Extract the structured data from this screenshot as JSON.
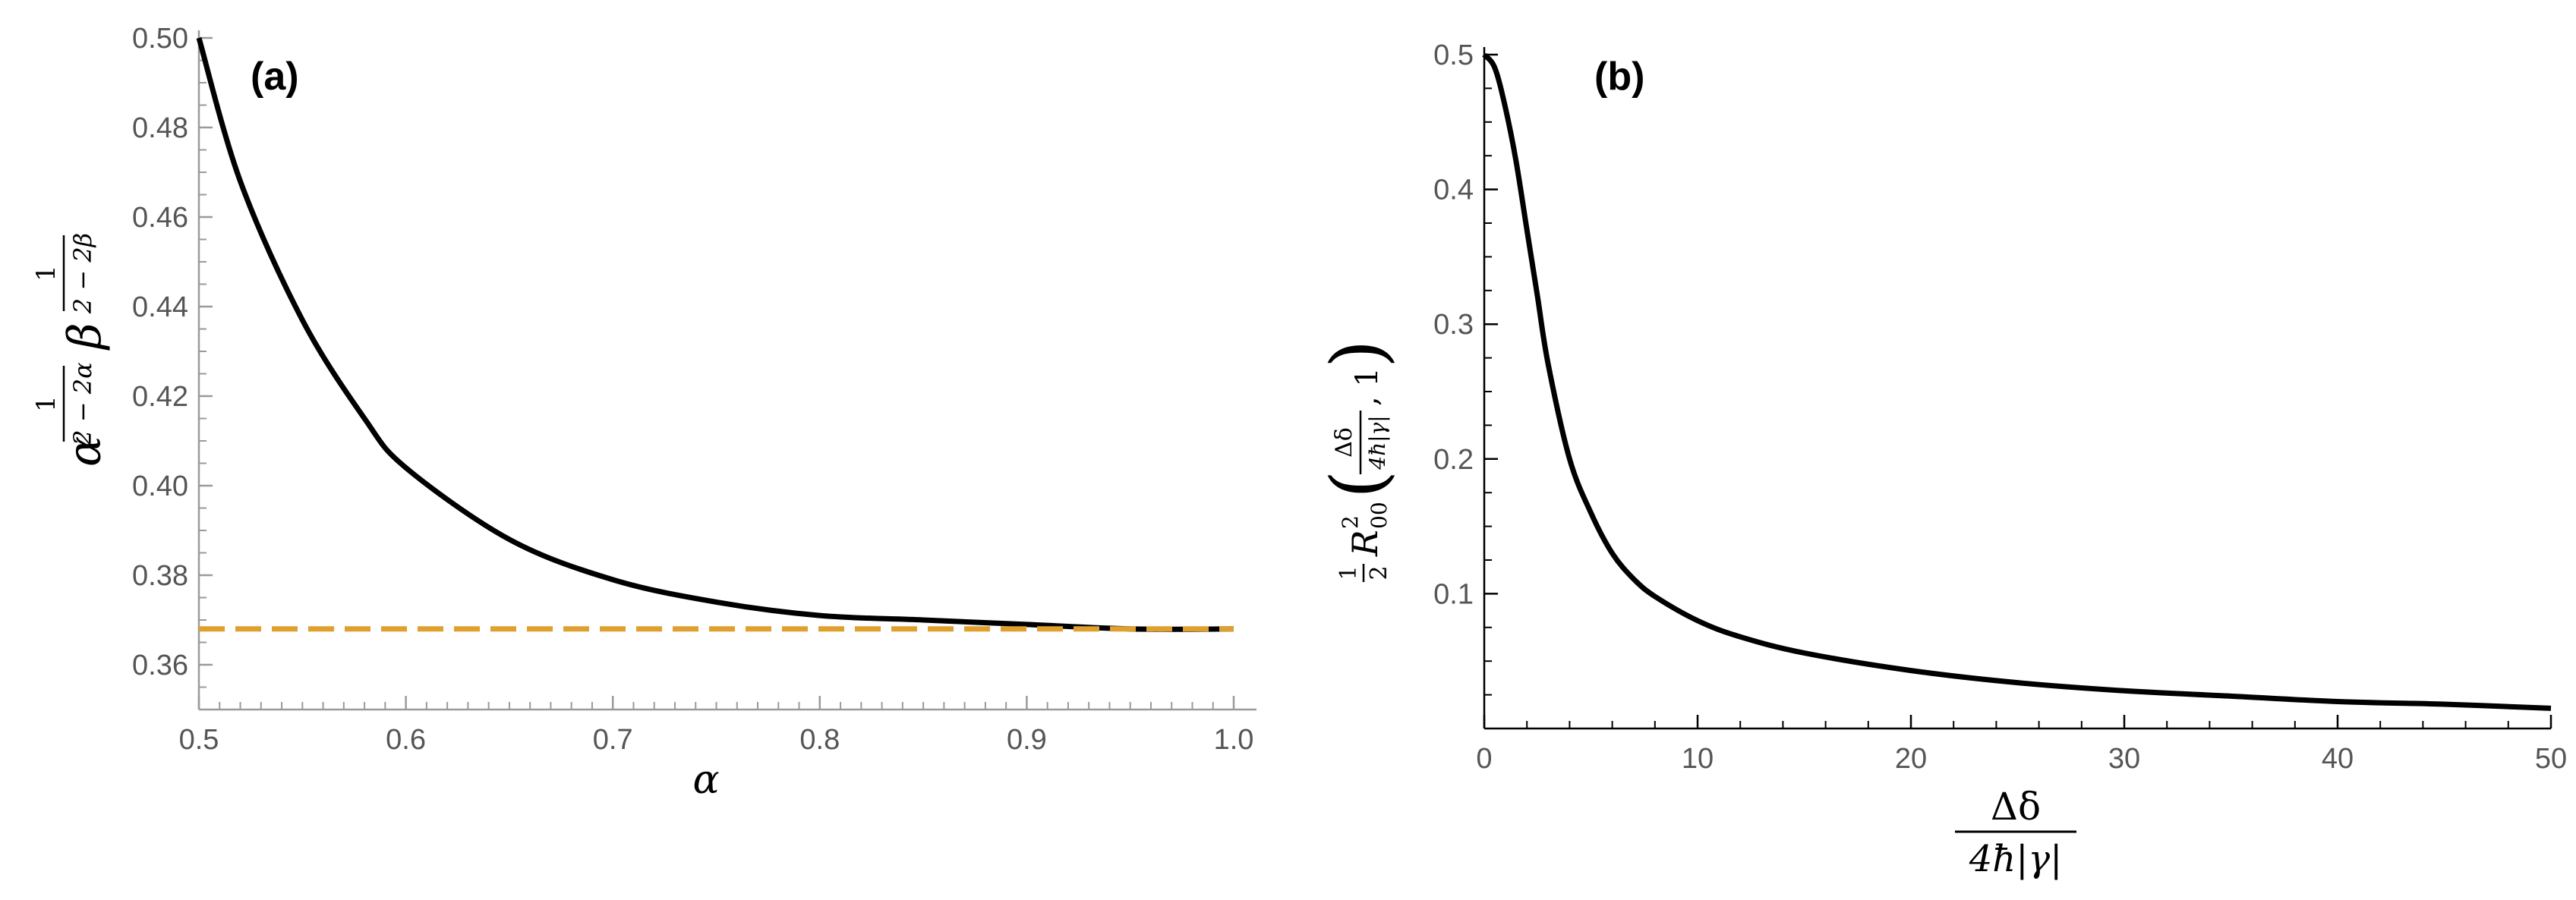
{
  "chart_data": [
    {
      "type": "line",
      "panel_label": "(a)",
      "xlabel": "α",
      "ylabel": "α^(1/(2−2α)) β^(1/(2−2β))",
      "ylabel_parts": {
        "base1": "α",
        "base2": "β",
        "num": "1",
        "den1": "2 − 2α",
        "den2": "2 − 2β"
      },
      "xlim": [
        0.5,
        1.0
      ],
      "ylim": [
        0.35,
        0.5
      ],
      "xticks": [
        "0.5",
        "0.6",
        "0.7",
        "0.8",
        "0.9",
        "1.0"
      ],
      "yticks": [
        "0.36",
        "0.38",
        "0.40",
        "0.42",
        "0.44",
        "0.46",
        "0.48",
        "0.50"
      ],
      "series": [
        {
          "name": "curve",
          "color": "#000000",
          "style": "solid",
          "x": [
            0.5,
            0.52,
            0.55,
            0.58,
            0.6,
            0.65,
            0.7,
            0.75,
            0.8,
            0.85,
            0.9,
            0.95,
            1.0
          ],
          "y": [
            0.5,
            0.468,
            0.437,
            0.415,
            0.404,
            0.388,
            0.379,
            0.374,
            0.371,
            0.37,
            0.369,
            0.368,
            0.368
          ]
        },
        {
          "name": "asymptote",
          "color": "#E0A030",
          "style": "dashed",
          "x": [
            0.5,
            1.0
          ],
          "y": [
            0.368,
            0.368
          ]
        }
      ]
    },
    {
      "type": "line",
      "panel_label": "(b)",
      "xlabel": "Δδ / (4ħ|γ|)",
      "xlabel_parts": {
        "num": "Δδ",
        "den": "4ħ|γ|"
      },
      "ylabel": "½ R²₀₀ (Δδ/(4ħ|γ|), 1)",
      "ylabel_parts": {
        "half_num": "1",
        "half_den": "2",
        "R": "R",
        "sup": "2",
        "sub": "00",
        "frac_num": "Δδ",
        "frac_den": "4ħ|γ|",
        "arg2": ", 1"
      },
      "xlim": [
        0,
        50
      ],
      "ylim": [
        0,
        0.5
      ],
      "xticks": [
        "0",
        "10",
        "20",
        "30",
        "40",
        "50"
      ],
      "yticks": [
        "0.1",
        "0.2",
        "0.3",
        "0.4",
        "0.5"
      ],
      "series": [
        {
          "name": "curve",
          "color": "#000000",
          "style": "solid",
          "x": [
            0,
            0.5,
            1,
            1.5,
            2,
            2.5,
            3,
            4,
            5,
            6,
            7,
            8,
            10,
            12,
            15,
            20,
            25,
            30,
            35,
            40,
            45,
            50
          ],
          "y": [
            0.5,
            0.49,
            0.46,
            0.42,
            0.37,
            0.32,
            0.27,
            0.2,
            0.16,
            0.13,
            0.111,
            0.098,
            0.08,
            0.068,
            0.056,
            0.043,
            0.034,
            0.028,
            0.024,
            0.02,
            0.018,
            0.015
          ]
        }
      ]
    }
  ]
}
